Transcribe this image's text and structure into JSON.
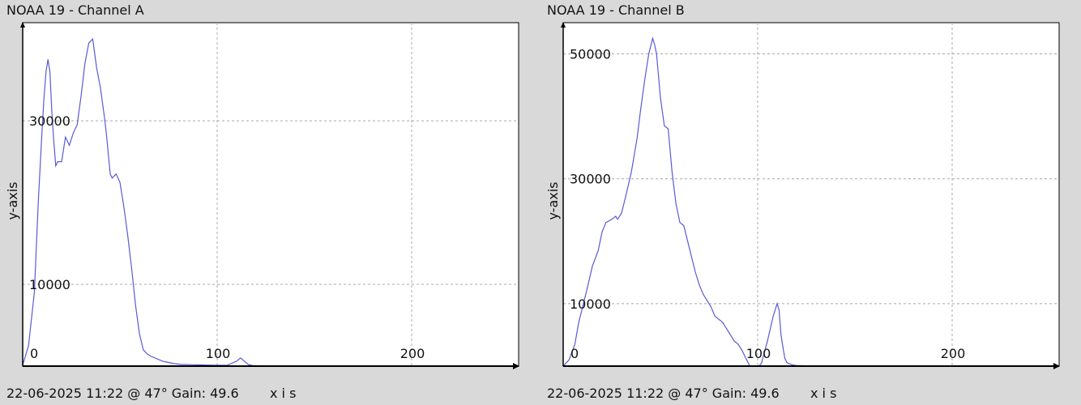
{
  "colors": {
    "background": "#d9d9d9",
    "plot_background": "#ffffff",
    "line": "#5a5ad6",
    "grid": "#a8a8a8",
    "axis": "#000000"
  },
  "chart_data": [
    {
      "type": "line",
      "title": "NOAA 19 - Channel A",
      "footer": "22-06-2025 11:22 @ 47° Gain: 49.6",
      "xlabel": "x i s",
      "ylabel": "y-axis",
      "xlim": [
        0,
        255
      ],
      "ylim": [
        0,
        42000
      ],
      "xticks": [
        0,
        100,
        200
      ],
      "yticks": [
        10000,
        30000
      ],
      "grid": true,
      "series": [
        {
          "x": [
            0,
            3,
            6,
            8,
            10,
            11,
            12,
            13,
            14,
            15,
            16,
            17,
            18,
            19,
            20,
            21,
            22,
            24,
            26,
            28,
            30,
            32,
            34,
            36,
            38,
            40,
            42,
            43,
            44,
            45,
            46,
            48,
            50,
            52,
            54,
            56,
            58,
            60,
            62,
            64,
            66,
            68,
            70,
            72,
            74,
            76,
            78,
            80,
            82,
            84,
            86,
            88,
            90,
            92,
            94,
            96,
            98,
            100,
            105,
            110,
            112,
            114,
            116,
            118,
            120,
            125,
            130,
            140,
            150,
            160,
            170,
            180,
            200,
            220,
            240,
            255
          ],
          "values": [
            100,
            2500,
            9000,
            20000,
            29000,
            33000,
            36000,
            37500,
            36000,
            31000,
            27500,
            24500,
            25000,
            25000,
            25000,
            26500,
            28000,
            27000,
            28500,
            29500,
            33000,
            37000,
            39500,
            40000,
            36500,
            34000,
            30500,
            28500,
            26000,
            23500,
            23000,
            23500,
            22500,
            19500,
            16000,
            12000,
            7500,
            4000,
            2000,
            1500,
            1200,
            1000,
            800,
            600,
            500,
            400,
            300,
            250,
            200,
            200,
            180,
            170,
            160,
            150,
            140,
            130,
            120,
            110,
            100,
            600,
            1000,
            600,
            200,
            80,
            60,
            40,
            30,
            20,
            10,
            0,
            0,
            0,
            0,
            0,
            0,
            0
          ]
        }
      ]
    },
    {
      "type": "line",
      "title": "NOAA 19 - Channel B",
      "footer": "22-06-2025 11:22 @ 47° Gain: 49.6",
      "xlabel": "x i s",
      "ylabel": "y-axis",
      "xlim": [
        0,
        255
      ],
      "ylim": [
        0,
        55000
      ],
      "xticks": [
        0,
        100,
        200
      ],
      "yticks": [
        10000,
        30000,
        50000
      ],
      "grid": true,
      "series": [
        {
          "x": [
            0,
            3,
            6,
            8,
            10,
            12,
            15,
            18,
            20,
            22,
            25,
            27,
            28,
            30,
            32,
            35,
            38,
            40,
            42,
            44,
            46,
            47,
            48,
            50,
            52,
            54,
            56,
            58,
            60,
            62,
            64,
            66,
            68,
            70,
            72,
            74,
            76,
            78,
            80,
            82,
            84,
            86,
            88,
            90,
            92,
            94,
            96,
            98,
            100,
            101,
            102,
            105,
            108,
            110,
            111,
            112,
            113,
            114,
            115,
            116,
            118,
            120,
            125,
            130,
            140,
            150,
            160,
            180,
            200,
            220,
            240,
            255
          ],
          "values": [
            0,
            1000,
            3500,
            7000,
            9500,
            12000,
            16000,
            18500,
            21500,
            23000,
            23500,
            24000,
            23500,
            24500,
            27000,
            31000,
            36500,
            41500,
            46000,
            50000,
            52500,
            51500,
            50000,
            43000,
            38500,
            38000,
            31000,
            26000,
            23000,
            22500,
            20000,
            17500,
            15000,
            13000,
            11500,
            10500,
            9500,
            8000,
            7500,
            7000,
            6000,
            5000,
            4000,
            3500,
            2500,
            1200,
            0,
            0,
            0,
            100,
            500,
            4000,
            8000,
            10000,
            9000,
            5000,
            3000,
            1200,
            600,
            400,
            200,
            100,
            50,
            0,
            0,
            0,
            0,
            0,
            0,
            0,
            0,
            0
          ]
        }
      ]
    }
  ]
}
